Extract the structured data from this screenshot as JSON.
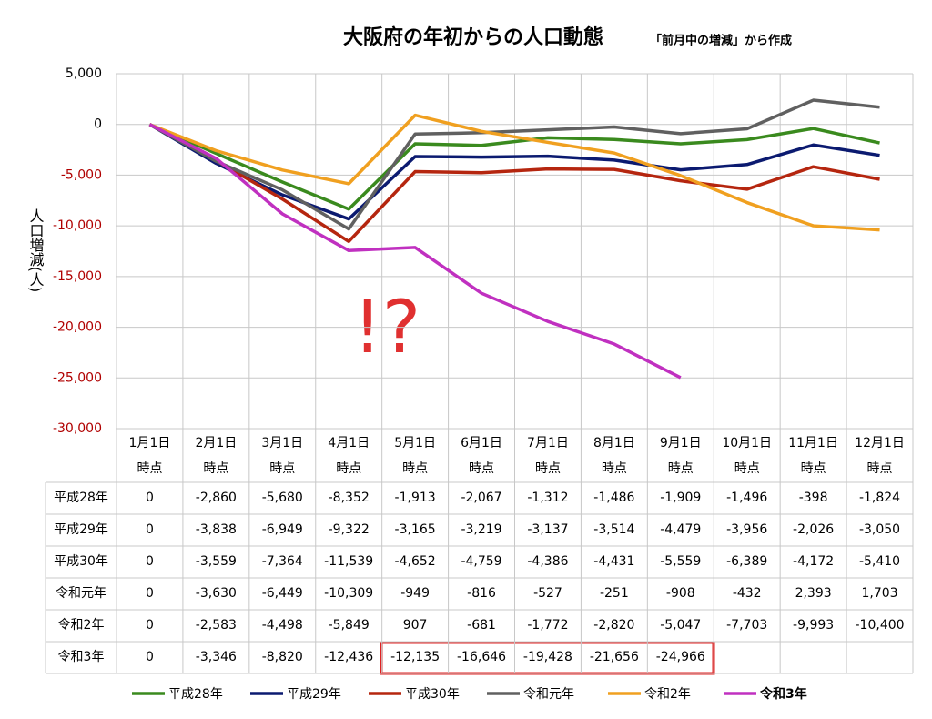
{
  "chart_data": {
    "type": "line",
    "title": "大阪府の年初からの人口動態",
    "subtitle": "「前月中の増減」から作成",
    "y_label": "人口増減(人)",
    "annotation": "!?",
    "categories": [
      "1月1日\n時点",
      "2月1日\n時点",
      "3月1日\n時点",
      "4月1日\n時点",
      "5月1日\n時点",
      "6月1日\n時点",
      "7月1日\n時点",
      "8月1日\n時点",
      "9月1日\n時点",
      "10月1日\n時点",
      "11月1日\n時点",
      "12月1日\n時点"
    ],
    "ylim": [
      -30000,
      5000
    ],
    "yticks": [
      {
        "value": -30000,
        "label": "-30,000"
      },
      {
        "value": -25000,
        "label": "-25,000"
      },
      {
        "value": -20000,
        "label": "-20,000"
      },
      {
        "value": -15000,
        "label": "-15,000"
      },
      {
        "value": -10000,
        "label": "-10,000"
      },
      {
        "value": -5000,
        "label": "-5,000"
      },
      0,
      {
        "value": 5000,
        "label": "5,000"
      }
    ],
    "negative_tick_color": "#b00000",
    "grid": true,
    "legend": "bottom",
    "series": [
      {
        "name": "平成28年",
        "color": "#3a8a1e",
        "values": [
          0,
          -2860,
          -5680,
          -8352,
          -1913,
          -2067,
          -1312,
          -1486,
          -1909,
          -1496,
          -398,
          -1824
        ],
        "value_labels": [
          "0",
          "-2,860",
          "-5,680",
          "-8,352",
          "-1,913",
          "-2,067",
          "-1,312",
          "-1,486",
          "-1,909",
          "-1,496",
          "-398",
          "-1,824"
        ]
      },
      {
        "name": "平成29年",
        "color": "#0b1a70",
        "values": [
          0,
          -3838,
          -6949,
          -9322,
          -3165,
          -3219,
          -3137,
          -3514,
          -4479,
          -3956,
          -2026,
          -3050
        ],
        "value_labels": [
          "0",
          "-3,838",
          "-6,949",
          "-9,322",
          "-3,165",
          "-3,219",
          "-3,137",
          "-3,514",
          "-4,479",
          "-3,956",
          "-2,026",
          "-3,050"
        ]
      },
      {
        "name": "平成30年",
        "color": "#b5260f",
        "values": [
          0,
          -3559,
          -7364,
          -11539,
          -4652,
          -4759,
          -4386,
          -4431,
          -5559,
          -6389,
          -4172,
          -5410
        ],
        "value_labels": [
          "0",
          "-3,559",
          "-7,364",
          "-11,539",
          "-4,652",
          "-4,759",
          "-4,386",
          "-4,431",
          "-5,559",
          "-6,389",
          "-4,172",
          "-5,410"
        ]
      },
      {
        "name": "令和元年",
        "color": "#606060",
        "values": [
          0,
          -3630,
          -6449,
          -10309,
          -949,
          -816,
          -527,
          -251,
          -908,
          -432,
          2393,
          1703
        ],
        "value_labels": [
          "0",
          "-3,630",
          "-6,449",
          "-10,309",
          "-949",
          "-816",
          "-527",
          "-251",
          "-908",
          "-432",
          "2,393",
          "1,703"
        ]
      },
      {
        "name": "令和2年",
        "color": "#f0a020",
        "values": [
          0,
          -2583,
          -4498,
          -5849,
          907,
          -681,
          -1772,
          -2820,
          -5047,
          -7703,
          -9993,
          -10400
        ],
        "value_labels": [
          "0",
          "-2,583",
          "-4,498",
          "-5,849",
          "907",
          "-681",
          "-1,772",
          "-2,820",
          "-5,047",
          "-7,703",
          "-9,993",
          "-10,400"
        ]
      },
      {
        "name": "令和3年",
        "color": "#c030c0",
        "bold": true,
        "values": [
          0,
          -3346,
          -8820,
          -12436,
          -12135,
          -16646,
          -19428,
          -21656,
          -24966,
          null,
          null,
          null
        ],
        "value_labels": [
          "0",
          "-3,346",
          "-8,820",
          "-12,436",
          "-12,135",
          "-16,646",
          "-19,428",
          "-21,656",
          "-24,966",
          null,
          null,
          null
        ]
      }
    ]
  }
}
